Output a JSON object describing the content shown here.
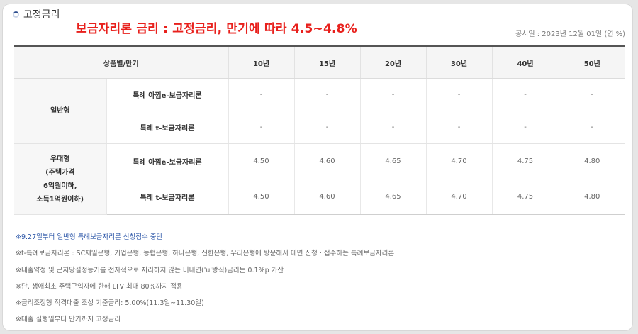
{
  "section": {
    "title": "고정금리"
  },
  "headline": "보금자리론 금리 : 고정금리, 만기에 따라 4.5~4.8%",
  "notice_date": "공시일 : 2023년 12월 01일 (연 %)",
  "table": {
    "header_product": "상품별/만기",
    "terms": [
      "10년",
      "15년",
      "20년",
      "30년",
      "40년",
      "50년"
    ],
    "groups": [
      {
        "name": "일반형",
        "rows": [
          {
            "product": "특례 아낌e-보금자리론",
            "values": [
              "-",
              "-",
              "-",
              "-",
              "-",
              "-"
            ]
          },
          {
            "product": "특례 t-보금자리론",
            "values": [
              "-",
              "-",
              "-",
              "-",
              "-",
              "-"
            ]
          }
        ]
      },
      {
        "name_lines": [
          "우대형",
          "(주택가격",
          "6억원이하,",
          "소득1억원이하)"
        ],
        "rows": [
          {
            "product": "특례 아낌e-보금자리론",
            "values": [
              "4.50",
              "4.60",
              "4.65",
              "4.70",
              "4.75",
              "4.80"
            ]
          },
          {
            "product": "특례 t-보금자리론",
            "values": [
              "4.50",
              "4.60",
              "4.65",
              "4.70",
              "4.75",
              "4.80"
            ]
          }
        ]
      }
    ]
  },
  "notes": [
    "※9.27일부터 일반형 특례보금자리론 신청접수 중단",
    "※t-특례보금자리론 : SC제일은행, 기업은행, 농협은행, 하나은행, 신한은행, 우리은행에 방문해서 대면 신청 · 접수하는 특례보금자리론",
    "※내출약정 및 근저당설정등기를 전자적으로 처리하지 않는 비내면('u'방식)금리는 0.1%p 가산",
    "※단, 생애최초 주택구입자에 한해 LTV 최대 80%까지 적용",
    "※금리조정형 적격대출 조성 기준금리: 5.00%(11.3일~11.30일)",
    "※대출 실행일부터 만기까지 고정금리"
  ]
}
